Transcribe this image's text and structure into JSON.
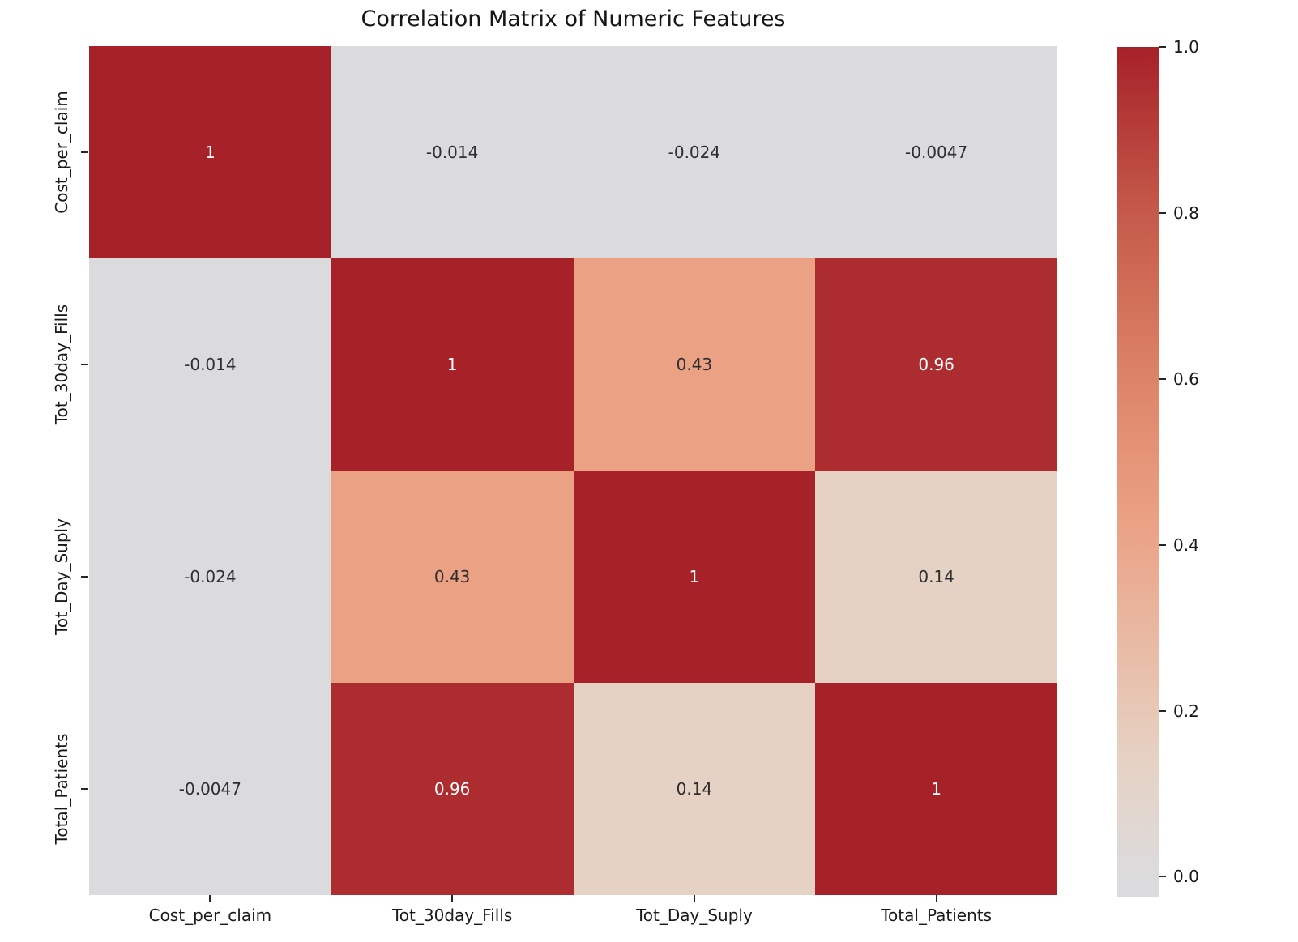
{
  "title": "Correlation Matrix of Numeric Features",
  "chart_data": {
    "type": "heatmap",
    "title": "Correlation Matrix of Numeric Features",
    "categories": [
      "Cost_per_claim",
      "Tot_30day_Fills",
      "Tot_Day_Suply",
      "Total_Patients"
    ],
    "matrix": [
      [
        1,
        -0.014,
        -0.024,
        -0.0047
      ],
      [
        -0.014,
        1,
        0.43,
        0.96
      ],
      [
        -0.024,
        0.43,
        1,
        0.14
      ],
      [
        -0.0047,
        0.96,
        0.14,
        1
      ]
    ],
    "cell_labels": [
      [
        "1",
        "-0.014",
        "-0.024",
        "-0.0047"
      ],
      [
        "-0.014",
        "1",
        "0.43",
        "0.96"
      ],
      [
        "-0.024",
        "0.43",
        "1",
        "0.14"
      ],
      [
        "-0.0047",
        "0.96",
        "0.14",
        "1"
      ]
    ],
    "colorbar": {
      "tick_labels": [
        "1.0",
        "0.8",
        "0.6",
        "0.4",
        "0.2",
        "0.0"
      ],
      "tick_values": [
        1.0,
        0.8,
        0.6,
        0.4,
        0.2,
        0.0
      ],
      "vmin": -0.024,
      "vmax": 1.0,
      "position": "right"
    },
    "colormap_stops": [
      [
        0.0,
        "#dbdbdd"
      ],
      [
        0.14,
        "#e6d2c4"
      ],
      [
        0.43,
        "#eba184"
      ],
      [
        0.6,
        "#dd8468"
      ],
      [
        0.8,
        "#c55a4a"
      ],
      [
        1.0,
        "#a72129"
      ]
    ],
    "annotation_color_dark": "#2e2e2e",
    "annotation_color_light": "#ffffff",
    "grid": false,
    "legend": false
  }
}
